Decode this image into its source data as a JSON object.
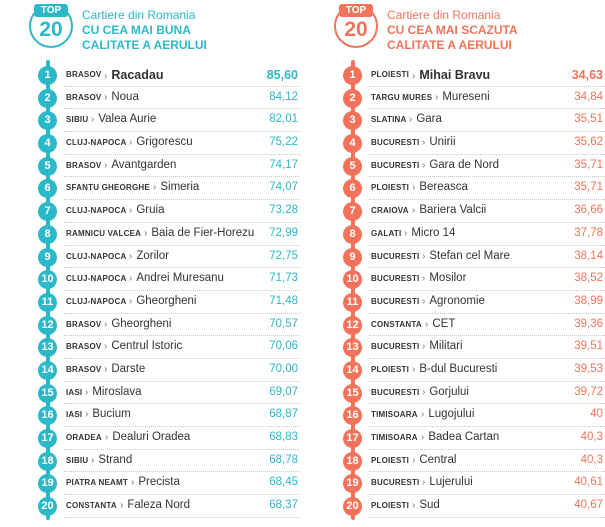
{
  "left": {
    "badge_top": "TOP",
    "badge_num": "20",
    "heading_line1": "Cartiere din Romania",
    "heading_line2": "CU CEA MAI BUNA",
    "heading_line3": "CALITATE A AERULUI",
    "accent": "#2bb8c8",
    "rows": [
      {
        "rank": "1",
        "city": "BRASOV",
        "place": "Racadau",
        "value": "85,60"
      },
      {
        "rank": "2",
        "city": "BRASOV",
        "place": "Noua",
        "value": "84,12"
      },
      {
        "rank": "3",
        "city": "SIBIU",
        "place": "Valea Aurie",
        "value": "82,01"
      },
      {
        "rank": "4",
        "city": "CLUJ-NAPOCA",
        "place": "Grigorescu",
        "value": "75,22"
      },
      {
        "rank": "5",
        "city": "BRASOV",
        "place": "Avantgarden",
        "value": "74,17"
      },
      {
        "rank": "6",
        "city": "SFANTU GHEORGHE",
        "place": "Simeria",
        "value": "74,07"
      },
      {
        "rank": "7",
        "city": "CLUJ-NAPOCA",
        "place": "Gruia",
        "value": "73,28"
      },
      {
        "rank": "8",
        "city": "RAMNICU VALCEA",
        "place": "Baia de Fier-Horezu",
        "value": "72,99"
      },
      {
        "rank": "9",
        "city": "CLUJ-NAPOCA",
        "place": "Zorilor",
        "value": "72,75"
      },
      {
        "rank": "10",
        "city": "CLUJ-NAPOCA",
        "place": "Andrei Muresanu",
        "value": "71,73"
      },
      {
        "rank": "11",
        "city": "CLUJ-NAPOCA",
        "place": "Gheorgheni",
        "value": "71,48"
      },
      {
        "rank": "12",
        "city": "BRASOV",
        "place": "Gheorgheni",
        "value": "70,57"
      },
      {
        "rank": "13",
        "city": "BRASOV",
        "place": "Centrul Istoric",
        "value": "70,06"
      },
      {
        "rank": "14",
        "city": "BRASOV",
        "place": "Darste",
        "value": "70,00"
      },
      {
        "rank": "15",
        "city": "IASI",
        "place": "Miroslava",
        "value": "69,07"
      },
      {
        "rank": "16",
        "city": "IASI",
        "place": "Bucium",
        "value": "68,87"
      },
      {
        "rank": "17",
        "city": "ORADEA",
        "place": "Dealuri Oradea",
        "value": "68,83"
      },
      {
        "rank": "18",
        "city": "SIBIU",
        "place": "Strand",
        "value": "68,78"
      },
      {
        "rank": "19",
        "city": "PIATRA NEAMT",
        "place": "Precista",
        "value": "68,45"
      },
      {
        "rank": "20",
        "city": "CONSTANTA",
        "place": "Faleza Nord",
        "value": "68,37"
      }
    ]
  },
  "right": {
    "badge_top": "TOP",
    "badge_num": "20",
    "heading_line1": "Cartiere din Romania",
    "heading_line2": "CU CEA MAI SCAZUTA",
    "heading_line3": "CALITATE A AERULUI",
    "accent": "#f2735a",
    "rows": [
      {
        "rank": "1",
        "city": "PLOIESTI",
        "place": "Mihai Bravu",
        "value": "34,63"
      },
      {
        "rank": "2",
        "city": "TARGU MURES",
        "place": "Mureseni",
        "value": "34,84"
      },
      {
        "rank": "3",
        "city": "SLATINA",
        "place": "Gara",
        "value": "35,51"
      },
      {
        "rank": "4",
        "city": "BUCURESTI",
        "place": "Unirii",
        "value": "35,62"
      },
      {
        "rank": "5",
        "city": "BUCURESTI",
        "place": "Gara de Nord",
        "value": "35,71"
      },
      {
        "rank": "6",
        "city": "PLOIESTI",
        "place": "Bereasca",
        "value": "35,71"
      },
      {
        "rank": "7",
        "city": "CRAIOVA",
        "place": "Bariera Valcii",
        "value": "36,66"
      },
      {
        "rank": "8",
        "city": "GALATI",
        "place": "Micro 14",
        "value": "37,78"
      },
      {
        "rank": "9",
        "city": "BUCURESTI",
        "place": "Stefan cel Mare",
        "value": "38,14"
      },
      {
        "rank": "10",
        "city": "BUCURESTI",
        "place": "Mosilor",
        "value": "38,52"
      },
      {
        "rank": "11",
        "city": "BUCURESTI",
        "place": "Agronomie",
        "value": "38,99"
      },
      {
        "rank": "12",
        "city": "CONSTANTA",
        "place": "CET",
        "value": "39,36"
      },
      {
        "rank": "13",
        "city": "BUCURESTI",
        "place": "Militari",
        "value": "39,51"
      },
      {
        "rank": "14",
        "city": "PLOIESTI",
        "place": "B-dul Bucuresti",
        "value": "39,53"
      },
      {
        "rank": "15",
        "city": "BUCURESTI",
        "place": "Gorjului",
        "value": "39,72"
      },
      {
        "rank": "16",
        "city": "TIMISOARA",
        "place": "Lugojului",
        "value": "40"
      },
      {
        "rank": "17",
        "city": "TIMISOARA",
        "place": "Badea Cartan",
        "value": "40,3"
      },
      {
        "rank": "18",
        "city": "PLOIESTI",
        "place": "Central",
        "value": "40,3"
      },
      {
        "rank": "19",
        "city": "BUCURESTI",
        "place": "Lujerului",
        "value": "40,61"
      },
      {
        "rank": "20",
        "city": "PLOIESTI",
        "place": "Sud",
        "value": "40,67"
      }
    ]
  },
  "separator": "›"
}
